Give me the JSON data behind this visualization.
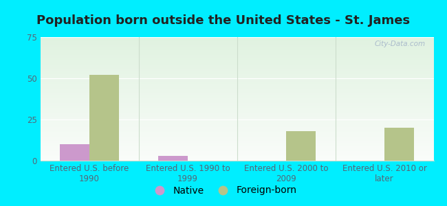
{
  "title": "Population born outside the United States - St. James",
  "categories": [
    "Entered U.S. before\n1990",
    "Entered U.S. 1990 to\n1999",
    "Entered U.S. 2000 to\n2009",
    "Entered U.S. 2010 or\nlater"
  ],
  "native_values": [
    10,
    3,
    0,
    0
  ],
  "foreign_values": [
    52,
    0,
    18,
    20
  ],
  "native_color": "#cc99cc",
  "foreign_color": "#b5c48a",
  "background_outer": "#00eeff",
  "ylim": [
    0,
    75
  ],
  "yticks": [
    0,
    25,
    50,
    75
  ],
  "bar_width": 0.3,
  "native_label": "Native",
  "foreign_label": "Foreign-born",
  "watermark": "City-Data.com",
  "title_fontsize": 13,
  "tick_fontsize": 8.5,
  "legend_fontsize": 10,
  "axis_text_color": "#556677",
  "grid_color": "#ffffff",
  "divider_color": "#ccddcc"
}
